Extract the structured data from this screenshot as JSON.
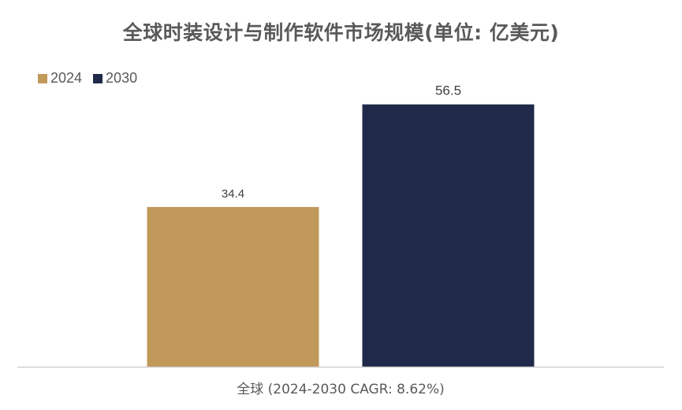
{
  "chart_data": {
    "type": "bar",
    "title": "全球时装设计与制作软件市场规模(单位: 亿美元)",
    "categories": [
      "全球 (2024-2030 CAGR: 8.62%)"
    ],
    "series": [
      {
        "name": "2024",
        "values": [
          34.4
        ],
        "color": "#C1995A"
      },
      {
        "name": "2030",
        "values": [
          56.5
        ],
        "color": "#20294A"
      }
    ],
    "data_labels": [
      "34.4",
      "56.5"
    ],
    "ylim": [
      0,
      60
    ],
    "grid": false,
    "legend_position": "top-left",
    "xlabel": "",
    "ylabel": ""
  }
}
